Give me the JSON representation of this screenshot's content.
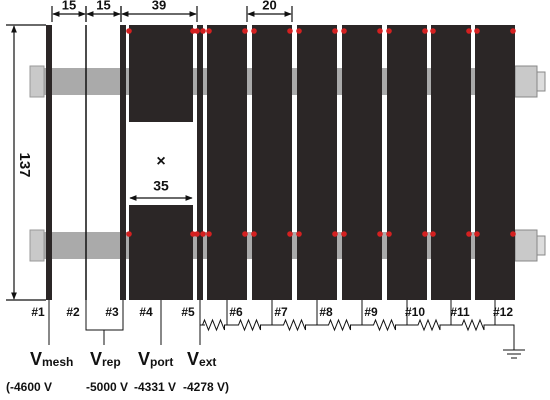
{
  "dimensions": [
    "15",
    "15",
    "39",
    "20",
    "137",
    "35"
  ],
  "aperture_mark": "×",
  "electrodes": [
    "#1",
    "#2",
    "#3",
    "#4",
    "#5",
    "#6",
    "#7",
    "#8",
    "#9",
    "#10",
    "#11",
    "#12"
  ],
  "voltages": [
    {
      "symbol": "V",
      "subscript": "mesh",
      "value": "(-4600 V"
    },
    {
      "symbol": "V",
      "subscript": "rep",
      "value": "-5000 V"
    },
    {
      "symbol": "V",
      "subscript": "port",
      "value": "-4331 V"
    },
    {
      "symbol": "V",
      "subscript": "ext",
      "value": "-4278 V)"
    }
  ]
}
